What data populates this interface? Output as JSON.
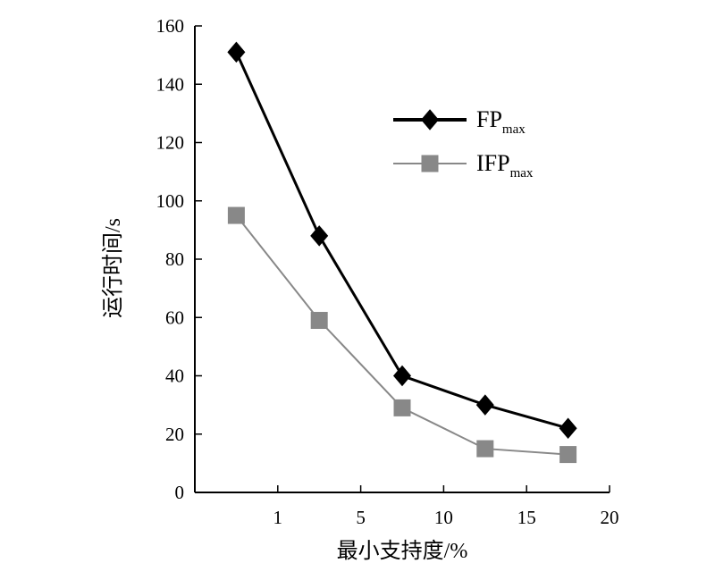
{
  "chart_data": {
    "type": "line",
    "title": "",
    "xlabel": "最小支持度/%",
    "ylabel": "运行时间/s",
    "x_tick_labels": [
      "1",
      "5",
      "10",
      "15",
      "20"
    ],
    "y_ticks": [
      0,
      20,
      40,
      60,
      80,
      100,
      120,
      140,
      160
    ],
    "ylim": [
      0,
      160
    ],
    "categories": [
      "1",
      "5",
      "10",
      "15",
      "20"
    ],
    "grid": false,
    "legend_position": "top-right",
    "series": [
      {
        "name": "FPmax",
        "name_main": "FP",
        "name_sub": "max",
        "marker": "diamond",
        "color": "#000000",
        "values": [
          151,
          88,
          40,
          30,
          22
        ]
      },
      {
        "name": "IFPmax",
        "name_main": "IFP",
        "name_sub": "max",
        "marker": "square",
        "color": "#888888",
        "values": [
          95,
          59,
          29,
          15,
          13
        ]
      }
    ]
  }
}
